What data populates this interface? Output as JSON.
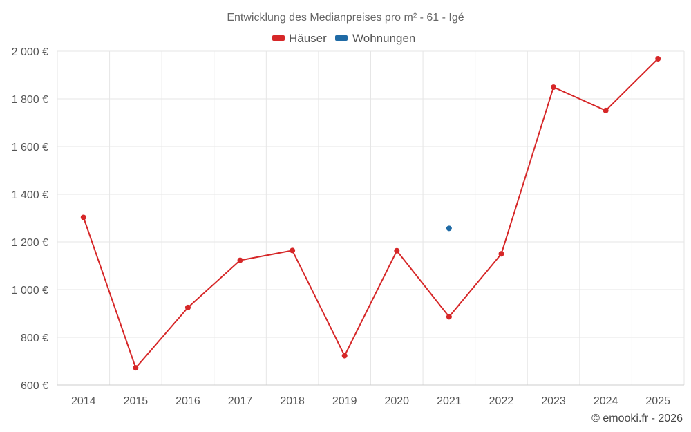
{
  "chart_data": {
    "type": "line",
    "title": "Entwicklung des Medianpreises pro m² - 61 - Igé",
    "categories": [
      "2014",
      "2015",
      "2016",
      "2017",
      "2018",
      "2019",
      "2020",
      "2021",
      "2022",
      "2023",
      "2024",
      "2025"
    ],
    "series": [
      {
        "name": "Häuser",
        "color": "#d62728",
        "values": [
          1303,
          672,
          925,
          1123,
          1164,
          723,
          1163,
          886,
          1150,
          1849,
          1751,
          1968
        ]
      },
      {
        "name": "Wohnungen",
        "color": "#1f6aa5",
        "values": [
          null,
          null,
          null,
          null,
          null,
          null,
          null,
          1257,
          null,
          null,
          null,
          null
        ]
      }
    ],
    "ylim": [
      600,
      2000
    ],
    "yticks": [
      600,
      800,
      1000,
      1200,
      1400,
      1600,
      1800,
      2000
    ],
    "ytick_labels": [
      "600 €",
      "800 €",
      "1 000 €",
      "1 200 €",
      "1 400 €",
      "1 600 €",
      "1 800 €",
      "2 000 €"
    ],
    "grid": true,
    "legend_position": "top-center",
    "credit": "© emooki.fr - 2026"
  }
}
